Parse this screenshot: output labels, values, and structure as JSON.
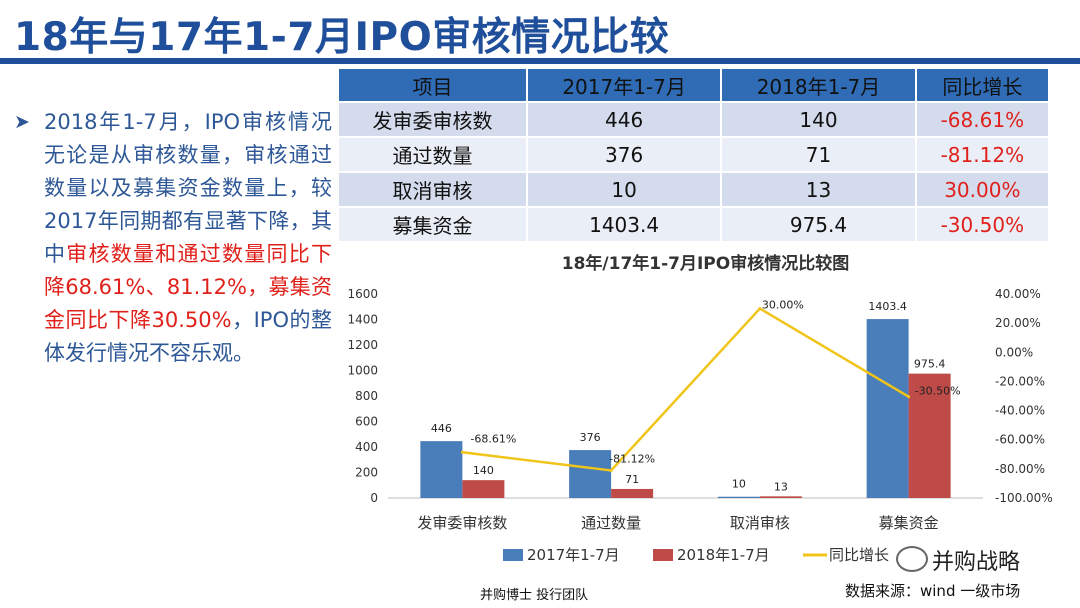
{
  "slide": {
    "title": "18年与17年1-7月IPO审核情况比较",
    "bullet_parts": [
      "2018年1-7月，IPO审核情况无论是从审核数量，审核通过数量以及募集资金数量上，较2017年同期都有显著下降，其中",
      "审核数量和通过数量同比下降68.61%、81.12%，募集资金同比下降30.50%",
      "，IPO的整体发行情况不容乐观。"
    ],
    "colors": {
      "title": "#1f4e9a",
      "body": "#2d5796",
      "highlight": "#e0211b"
    },
    "team_label": "并购博士 投行团队",
    "source": "数据来源：wind 一级市场",
    "watermark": "并购战略"
  },
  "table": {
    "headers": [
      "项目",
      "2017年1-7月",
      "2018年1-7月",
      "同比增长"
    ],
    "rows": [
      [
        "发审委审核数",
        "446",
        "140",
        "-68.61%"
      ],
      [
        "通过数量",
        "376",
        "71",
        "-81.12%"
      ],
      [
        "取消审核",
        "10",
        "13",
        "30.00%"
      ],
      [
        "募集资金",
        "1403.4",
        "975.4",
        "-30.50%"
      ]
    ]
  },
  "chart_data": {
    "type": "bar",
    "title": "18年/17年1-7月IPO审核情况比较图",
    "categories": [
      "发审委审核数",
      "通过数量",
      "取消审核",
      "募集资金"
    ],
    "series": [
      {
        "name": "2017年1-7月",
        "type": "bar",
        "axis": "left",
        "color": "#4a7ebb",
        "values": [
          446,
          376,
          10,
          1403.4
        ]
      },
      {
        "name": "2018年1-7月",
        "type": "bar",
        "axis": "left",
        "color": "#be4b48",
        "values": [
          140,
          71,
          13,
          975.4
        ]
      },
      {
        "name": "同比增长",
        "type": "line",
        "axis": "right",
        "color": "#f0c419",
        "values": [
          -68.61,
          -81.12,
          30.0,
          -30.5
        ]
      }
    ],
    "left_axis": {
      "min": 0,
      "max": 1600,
      "step": 200
    },
    "right_axis": {
      "min": -100,
      "max": 40,
      "step": 20,
      "format": "percent"
    },
    "data_labels": {
      "2017年1-7月": [
        "446",
        "376",
        "10",
        "1403.4"
      ],
      "2018年1-7月": [
        "140",
        "71",
        "13",
        "975.4"
      ],
      "同比增长": [
        "-68.61%",
        "-81.12%",
        "30.00%",
        "-30.50%"
      ]
    },
    "legend_position": "bottom",
    "grid": false
  }
}
